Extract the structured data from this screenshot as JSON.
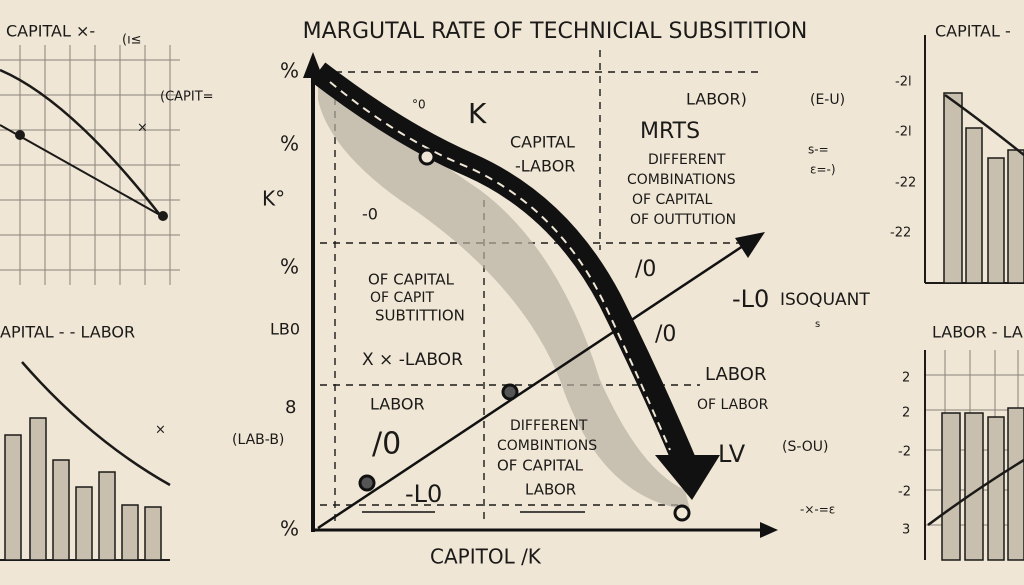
{
  "title": "MARGUTAL RATE OF TECHNICIAL SUBSITITION",
  "top_left_panel": {
    "title": "CAPITAL ×-",
    "labels": [
      "(ı≤",
      "(CAPIT=",
      "×"
    ]
  },
  "bottom_left_panel": {
    "title": "APITAL -   - LABOR",
    "labels": [
      "×"
    ]
  },
  "top_right_panel": {
    "title": "CAPITAL -",
    "labels": [
      "-2l",
      "-2l",
      "-22",
      "-22"
    ]
  },
  "bottom_right_panel": {
    "title": "LABOR - LA",
    "labels": [
      "2",
      "2",
      "-2",
      "-2",
      "3"
    ]
  },
  "main": {
    "axis_label": "CAPITOL /K",
    "labels": [
      "%",
      "%",
      "K°",
      "%",
      "LB0",
      "8",
      "(LAB-B)",
      "%",
      "°0",
      "K",
      "CAPITAL",
      "-LABOR",
      "LABOR)",
      "MRTS",
      "DIFFERENT",
      "COMBINATIONS",
      "OF CAPITAL",
      "OF OUTTUTION",
      "-0",
      "/0",
      "OF CAPITAL",
      "OF CAPIT",
      "SUBTITTION",
      "X  ×  -LABOR",
      "LABOR",
      "/0",
      "-L0",
      "DIFFERENT",
      "COMBINTIONS",
      "OF CAPITAL",
      "LABOR",
      "-L0",
      "ISOQUANT",
      "s",
      "/0",
      "LABOR",
      "OF LABOR",
      "LV",
      "(S-OU)",
      "-×-=ɛ",
      "(E-U)",
      "s-=",
      "ɛ=-)"
    ]
  }
}
